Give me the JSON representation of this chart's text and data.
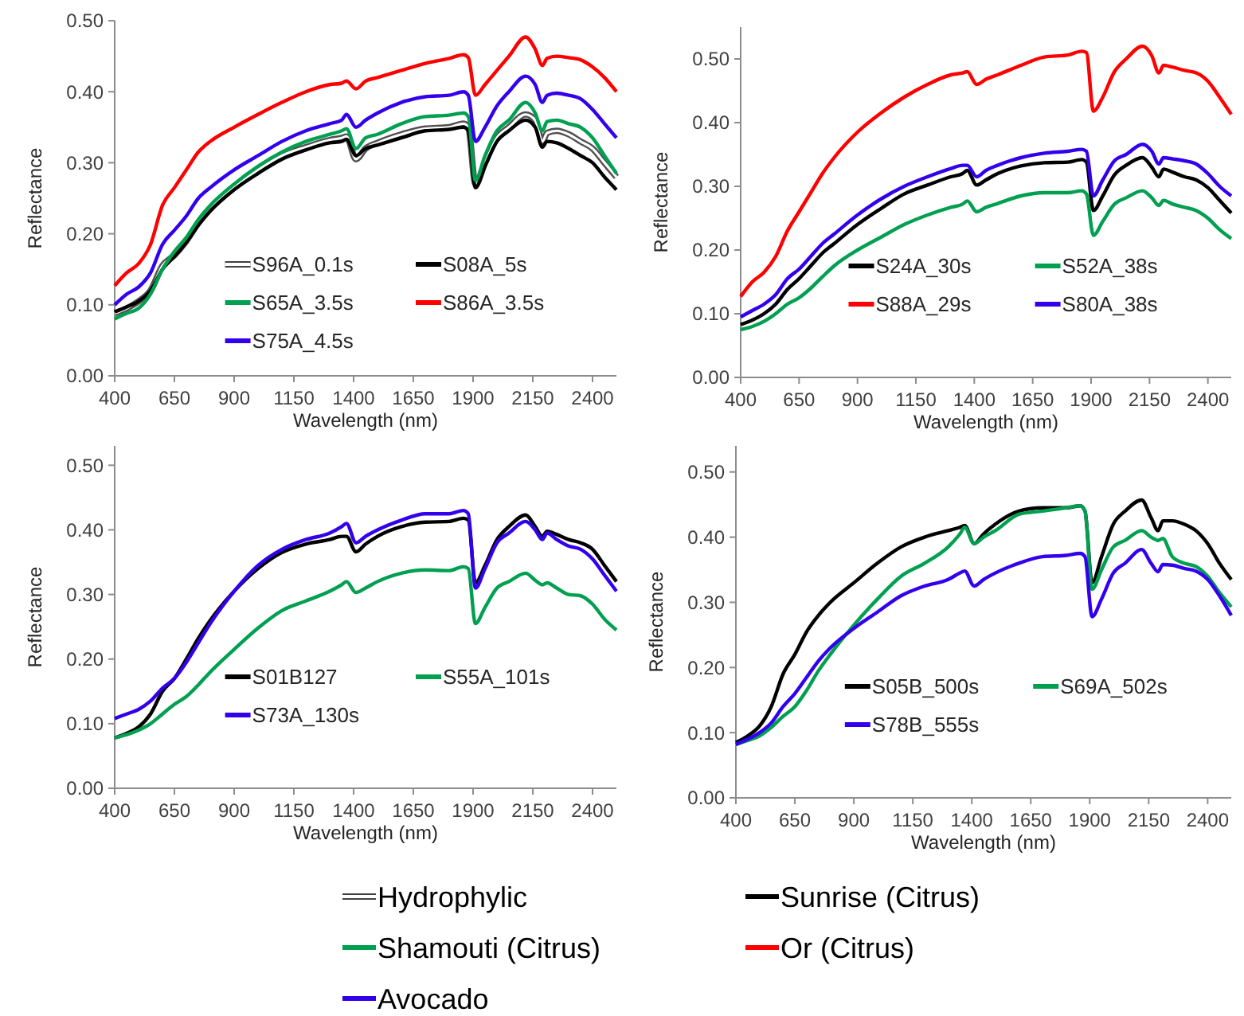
{
  "chart_data": [
    {
      "type": "line",
      "xlabel": "Wavelength (nm)",
      "ylabel": "Reflectance",
      "legend": "bottom",
      "grid": false,
      "marker": "none",
      "line_style": "solid",
      "x": [
        400,
        450,
        500,
        550,
        600,
        650,
        700,
        750,
        800,
        900,
        1000,
        1100,
        1200,
        1300,
        1350,
        1370,
        1410,
        1450,
        1500,
        1600,
        1700,
        1800,
        1860,
        1880,
        1910,
        1950,
        2000,
        2050,
        2120,
        2160,
        2190,
        2210,
        2250,
        2300,
        2350,
        2400,
        2450,
        2500
      ],
      "xlim": [
        400,
        2500
      ],
      "xticks": [
        400,
        650,
        900,
        1150,
        1400,
        1650,
        1900,
        2150,
        2400
      ],
      "ylim": [
        0,
        0.5
      ],
      "yticks": [
        {
          "value": 0,
          "label": "0.00"
        },
        {
          "value": 0.1,
          "label": "0.10"
        },
        {
          "value": 0.2,
          "label": "0.20"
        },
        {
          "value": 0.3,
          "label": "0.30"
        },
        {
          "value": 0.4,
          "label": "0.40"
        },
        {
          "value": 0.5,
          "label": "0.50"
        }
      ],
      "series": [
        {
          "name": "S96A_0.1s",
          "color": "#ffffff",
          "values": [
            0.088,
            0.095,
            0.105,
            0.12,
            0.155,
            0.17,
            0.19,
            0.215,
            0.235,
            0.265,
            0.29,
            0.31,
            0.322,
            0.332,
            0.335,
            0.337,
            0.305,
            0.32,
            0.328,
            0.34,
            0.348,
            0.35,
            0.355,
            0.35,
            0.27,
            0.3,
            0.335,
            0.35,
            0.368,
            0.36,
            0.33,
            0.342,
            0.345,
            0.34,
            0.33,
            0.32,
            0.3,
            0.28
          ]
        },
        {
          "name": "S08A_5s",
          "color": "#000000",
          "values": [
            0.09,
            0.097,
            0.105,
            0.12,
            0.15,
            0.168,
            0.188,
            0.212,
            0.232,
            0.262,
            0.285,
            0.305,
            0.318,
            0.328,
            0.33,
            0.333,
            0.31,
            0.32,
            0.325,
            0.335,
            0.345,
            0.347,
            0.35,
            0.345,
            0.265,
            0.295,
            0.33,
            0.345,
            0.36,
            0.35,
            0.322,
            0.33,
            0.328,
            0.32,
            0.31,
            0.3,
            0.28,
            0.262
          ]
        },
        {
          "name": "S65A_3.5s",
          "color": "#00a050",
          "values": [
            0.08,
            0.088,
            0.095,
            0.115,
            0.15,
            0.175,
            0.195,
            0.22,
            0.24,
            0.27,
            0.295,
            0.315,
            0.33,
            0.34,
            0.345,
            0.348,
            0.32,
            0.335,
            0.34,
            0.355,
            0.365,
            0.367,
            0.37,
            0.365,
            0.275,
            0.31,
            0.345,
            0.36,
            0.385,
            0.37,
            0.345,
            0.358,
            0.36,
            0.355,
            0.35,
            0.335,
            0.31,
            0.285
          ]
        },
        {
          "name": "S86A_3.5s",
          "color": "#ff0000",
          "values": [
            0.127,
            0.145,
            0.158,
            0.185,
            0.24,
            0.265,
            0.29,
            0.315,
            0.33,
            0.35,
            0.368,
            0.385,
            0.4,
            0.41,
            0.412,
            0.415,
            0.404,
            0.415,
            0.42,
            0.43,
            0.44,
            0.447,
            0.452,
            0.448,
            0.395,
            0.41,
            0.43,
            0.45,
            0.477,
            0.46,
            0.437,
            0.447,
            0.45,
            0.448,
            0.445,
            0.435,
            0.42,
            0.4
          ]
        },
        {
          "name": "S75A_4.5s",
          "color": "#3300ee",
          "values": [
            0.1,
            0.115,
            0.125,
            0.145,
            0.185,
            0.205,
            0.225,
            0.25,
            0.265,
            0.29,
            0.31,
            0.33,
            0.345,
            0.355,
            0.36,
            0.368,
            0.35,
            0.36,
            0.37,
            0.385,
            0.393,
            0.395,
            0.4,
            0.395,
            0.33,
            0.35,
            0.38,
            0.4,
            0.422,
            0.41,
            0.385,
            0.395,
            0.398,
            0.395,
            0.39,
            0.375,
            0.355,
            0.335
          ]
        }
      ]
    },
    {
      "type": "line",
      "xlabel": "Wavelength (nm)",
      "ylabel": "Reflectance",
      "legend": "bottom",
      "grid": false,
      "marker": "none",
      "line_style": "solid",
      "x": [
        400,
        450,
        500,
        550,
        600,
        650,
        700,
        750,
        800,
        900,
        1000,
        1100,
        1200,
        1300,
        1350,
        1370,
        1410,
        1450,
        1500,
        1600,
        1700,
        1800,
        1860,
        1880,
        1910,
        1950,
        2000,
        2050,
        2120,
        2160,
        2190,
        2210,
        2250,
        2300,
        2350,
        2400,
        2450,
        2500
      ],
      "xlim": [
        400,
        2500
      ],
      "xticks": [
        400,
        650,
        900,
        1150,
        1400,
        1650,
        1900,
        2150,
        2400
      ],
      "ylim": [
        0,
        0.55
      ],
      "yticks": [
        {
          "value": 0,
          "label": "0.00"
        },
        {
          "value": 0.1,
          "label": "0.10"
        },
        {
          "value": 0.2,
          "label": "0.20"
        },
        {
          "value": 0.3,
          "label": "0.30"
        },
        {
          "value": 0.4,
          "label": "0.40"
        },
        {
          "value": 0.5,
          "label": "0.50"
        }
      ],
      "series": [
        {
          "name": "S24A_30s",
          "color": "#000000",
          "values": [
            0.083,
            0.09,
            0.1,
            0.115,
            0.138,
            0.155,
            0.175,
            0.195,
            0.21,
            0.24,
            0.265,
            0.288,
            0.302,
            0.315,
            0.32,
            0.325,
            0.302,
            0.31,
            0.32,
            0.332,
            0.337,
            0.338,
            0.342,
            0.338,
            0.262,
            0.285,
            0.318,
            0.333,
            0.345,
            0.33,
            0.315,
            0.327,
            0.322,
            0.315,
            0.31,
            0.298,
            0.278,
            0.258
          ]
        },
        {
          "name": "S52A_38s",
          "color": "#00a050",
          "values": [
            0.075,
            0.08,
            0.088,
            0.1,
            0.115,
            0.125,
            0.14,
            0.158,
            0.175,
            0.2,
            0.22,
            0.24,
            0.255,
            0.267,
            0.272,
            0.277,
            0.26,
            0.267,
            0.273,
            0.285,
            0.29,
            0.29,
            0.293,
            0.288,
            0.223,
            0.245,
            0.272,
            0.282,
            0.293,
            0.282,
            0.27,
            0.278,
            0.272,
            0.267,
            0.262,
            0.25,
            0.232,
            0.218
          ]
        },
        {
          "name": "S88A_29s",
          "color": "#ff0000",
          "values": [
            0.127,
            0.15,
            0.165,
            0.19,
            0.23,
            0.26,
            0.29,
            0.32,
            0.345,
            0.385,
            0.415,
            0.44,
            0.46,
            0.475,
            0.478,
            0.48,
            0.46,
            0.468,
            0.475,
            0.49,
            0.503,
            0.506,
            0.512,
            0.51,
            0.418,
            0.44,
            0.48,
            0.5,
            0.52,
            0.505,
            0.478,
            0.49,
            0.487,
            0.482,
            0.478,
            0.465,
            0.44,
            0.413
          ]
        },
        {
          "name": "S80A_38s",
          "color": "#3300ee",
          "values": [
            0.095,
            0.105,
            0.115,
            0.13,
            0.155,
            0.17,
            0.19,
            0.21,
            0.225,
            0.255,
            0.28,
            0.3,
            0.315,
            0.328,
            0.333,
            0.333,
            0.315,
            0.325,
            0.333,
            0.345,
            0.352,
            0.355,
            0.358,
            0.355,
            0.285,
            0.31,
            0.34,
            0.35,
            0.366,
            0.355,
            0.335,
            0.345,
            0.343,
            0.34,
            0.335,
            0.32,
            0.3,
            0.285
          ]
        }
      ]
    },
    {
      "type": "line",
      "xlabel": "Wavelength (nm)",
      "ylabel": "Reflectance",
      "legend": "bottom",
      "grid": false,
      "marker": "none",
      "line_style": "solid",
      "x": [
        400,
        450,
        500,
        550,
        600,
        650,
        700,
        750,
        800,
        900,
        1000,
        1100,
        1200,
        1300,
        1350,
        1370,
        1410,
        1450,
        1500,
        1600,
        1700,
        1800,
        1860,
        1880,
        1910,
        1950,
        2000,
        2050,
        2120,
        2160,
        2190,
        2210,
        2250,
        2300,
        2350,
        2400,
        2450,
        2500
      ],
      "xlim": [
        400,
        2500
      ],
      "xticks": [
        400,
        650,
        900,
        1150,
        1400,
        1650,
        1900,
        2150,
        2400
      ],
      "ylim": [
        0,
        0.53
      ],
      "yticks": [
        {
          "value": 0,
          "label": "0.00"
        },
        {
          "value": 0.1,
          "label": "0.10"
        },
        {
          "value": 0.2,
          "label": "0.20"
        },
        {
          "value": 0.3,
          "label": "0.30"
        },
        {
          "value": 0.4,
          "label": "0.40"
        },
        {
          "value": 0.5,
          "label": "0.50"
        }
      ],
      "series": [
        {
          "name": "S01B127",
          "color": "#000000",
          "values": [
            0.078,
            0.085,
            0.095,
            0.115,
            0.15,
            0.17,
            0.2,
            0.232,
            0.26,
            0.305,
            0.34,
            0.365,
            0.378,
            0.385,
            0.39,
            0.39,
            0.366,
            0.378,
            0.39,
            0.405,
            0.412,
            0.413,
            0.418,
            0.415,
            0.318,
            0.345,
            0.385,
            0.405,
            0.423,
            0.405,
            0.39,
            0.398,
            0.393,
            0.385,
            0.38,
            0.37,
            0.345,
            0.32
          ]
        },
        {
          "name": "S55A_101s",
          "color": "#00a050",
          "values": [
            0.078,
            0.083,
            0.09,
            0.1,
            0.115,
            0.13,
            0.142,
            0.16,
            0.18,
            0.215,
            0.248,
            0.275,
            0.29,
            0.305,
            0.315,
            0.32,
            0.303,
            0.31,
            0.32,
            0.333,
            0.338,
            0.337,
            0.343,
            0.34,
            0.255,
            0.28,
            0.31,
            0.32,
            0.333,
            0.322,
            0.315,
            0.318,
            0.31,
            0.3,
            0.298,
            0.285,
            0.262,
            0.245
          ]
        },
        {
          "name": "S73A_130s",
          "color": "#3300ee",
          "values": [
            0.108,
            0.115,
            0.122,
            0.135,
            0.155,
            0.17,
            0.195,
            0.225,
            0.255,
            0.305,
            0.345,
            0.37,
            0.385,
            0.395,
            0.405,
            0.41,
            0.38,
            0.39,
            0.4,
            0.415,
            0.425,
            0.425,
            0.43,
            0.425,
            0.31,
            0.34,
            0.38,
            0.395,
            0.413,
            0.4,
            0.385,
            0.395,
            0.385,
            0.375,
            0.37,
            0.355,
            0.33,
            0.305
          ]
        }
      ]
    },
    {
      "type": "line",
      "xlabel": "Wavelength (nm)",
      "ylabel": "Reflectance",
      "legend": "bottom",
      "grid": false,
      "marker": "none",
      "line_style": "solid",
      "x": [
        400,
        450,
        500,
        550,
        600,
        650,
        700,
        750,
        800,
        900,
        1000,
        1100,
        1200,
        1300,
        1350,
        1370,
        1410,
        1450,
        1500,
        1600,
        1700,
        1800,
        1860,
        1880,
        1910,
        1950,
        2000,
        2050,
        2120,
        2160,
        2190,
        2210,
        2250,
        2300,
        2350,
        2400,
        2450,
        2500
      ],
      "xlim": [
        400,
        2500
      ],
      "xticks": [
        400,
        650,
        900,
        1150,
        1400,
        1650,
        1900,
        2150,
        2400
      ],
      "ylim": [
        0,
        0.54
      ],
      "yticks": [
        {
          "value": 0,
          "label": "0.00"
        },
        {
          "value": 0.1,
          "label": "0.10"
        },
        {
          "value": 0.2,
          "label": "0.20"
        },
        {
          "value": 0.3,
          "label": "0.30"
        },
        {
          "value": 0.4,
          "label": "0.40"
        },
        {
          "value": 0.5,
          "label": "0.50"
        }
      ],
      "series": [
        {
          "name": "S05B_500s",
          "color": "#000000",
          "values": [
            0.085,
            0.095,
            0.11,
            0.14,
            0.19,
            0.22,
            0.255,
            0.28,
            0.3,
            0.33,
            0.36,
            0.385,
            0.4,
            0.41,
            0.415,
            0.418,
            0.39,
            0.405,
            0.42,
            0.44,
            0.445,
            0.445,
            0.448,
            0.44,
            0.33,
            0.37,
            0.42,
            0.44,
            0.457,
            0.43,
            0.41,
            0.425,
            0.425,
            0.42,
            0.41,
            0.39,
            0.36,
            0.335
          ]
        },
        {
          "name": "S69A_502s",
          "color": "#00a050",
          "values": [
            0.082,
            0.088,
            0.095,
            0.108,
            0.125,
            0.14,
            0.165,
            0.195,
            0.22,
            0.265,
            0.305,
            0.34,
            0.36,
            0.385,
            0.405,
            0.415,
            0.39,
            0.4,
            0.41,
            0.435,
            0.44,
            0.445,
            0.448,
            0.44,
            0.32,
            0.35,
            0.385,
            0.395,
            0.41,
            0.4,
            0.395,
            0.398,
            0.37,
            0.36,
            0.355,
            0.34,
            0.315,
            0.293
          ]
        },
        {
          "name": "S78B_555s",
          "color": "#3300ee",
          "values": [
            0.082,
            0.09,
            0.1,
            0.115,
            0.14,
            0.16,
            0.185,
            0.21,
            0.23,
            0.26,
            0.285,
            0.31,
            0.325,
            0.335,
            0.345,
            0.348,
            0.325,
            0.335,
            0.345,
            0.36,
            0.37,
            0.372,
            0.375,
            0.37,
            0.278,
            0.305,
            0.345,
            0.36,
            0.381,
            0.36,
            0.347,
            0.358,
            0.357,
            0.352,
            0.348,
            0.335,
            0.31,
            0.28
          ]
        }
      ]
    },
    {
      "type": "other",
      "categories": [
        "Hydrophylic",
        "Sunrise (Citrus)",
        "Shamouti (Citrus)",
        "Or (Citrus)",
        "Avocado"
      ],
      "colors": [
        "#ffffff",
        "#000000",
        "#00a050",
        "#ff0000",
        "#3300ee"
      ]
    }
  ]
}
